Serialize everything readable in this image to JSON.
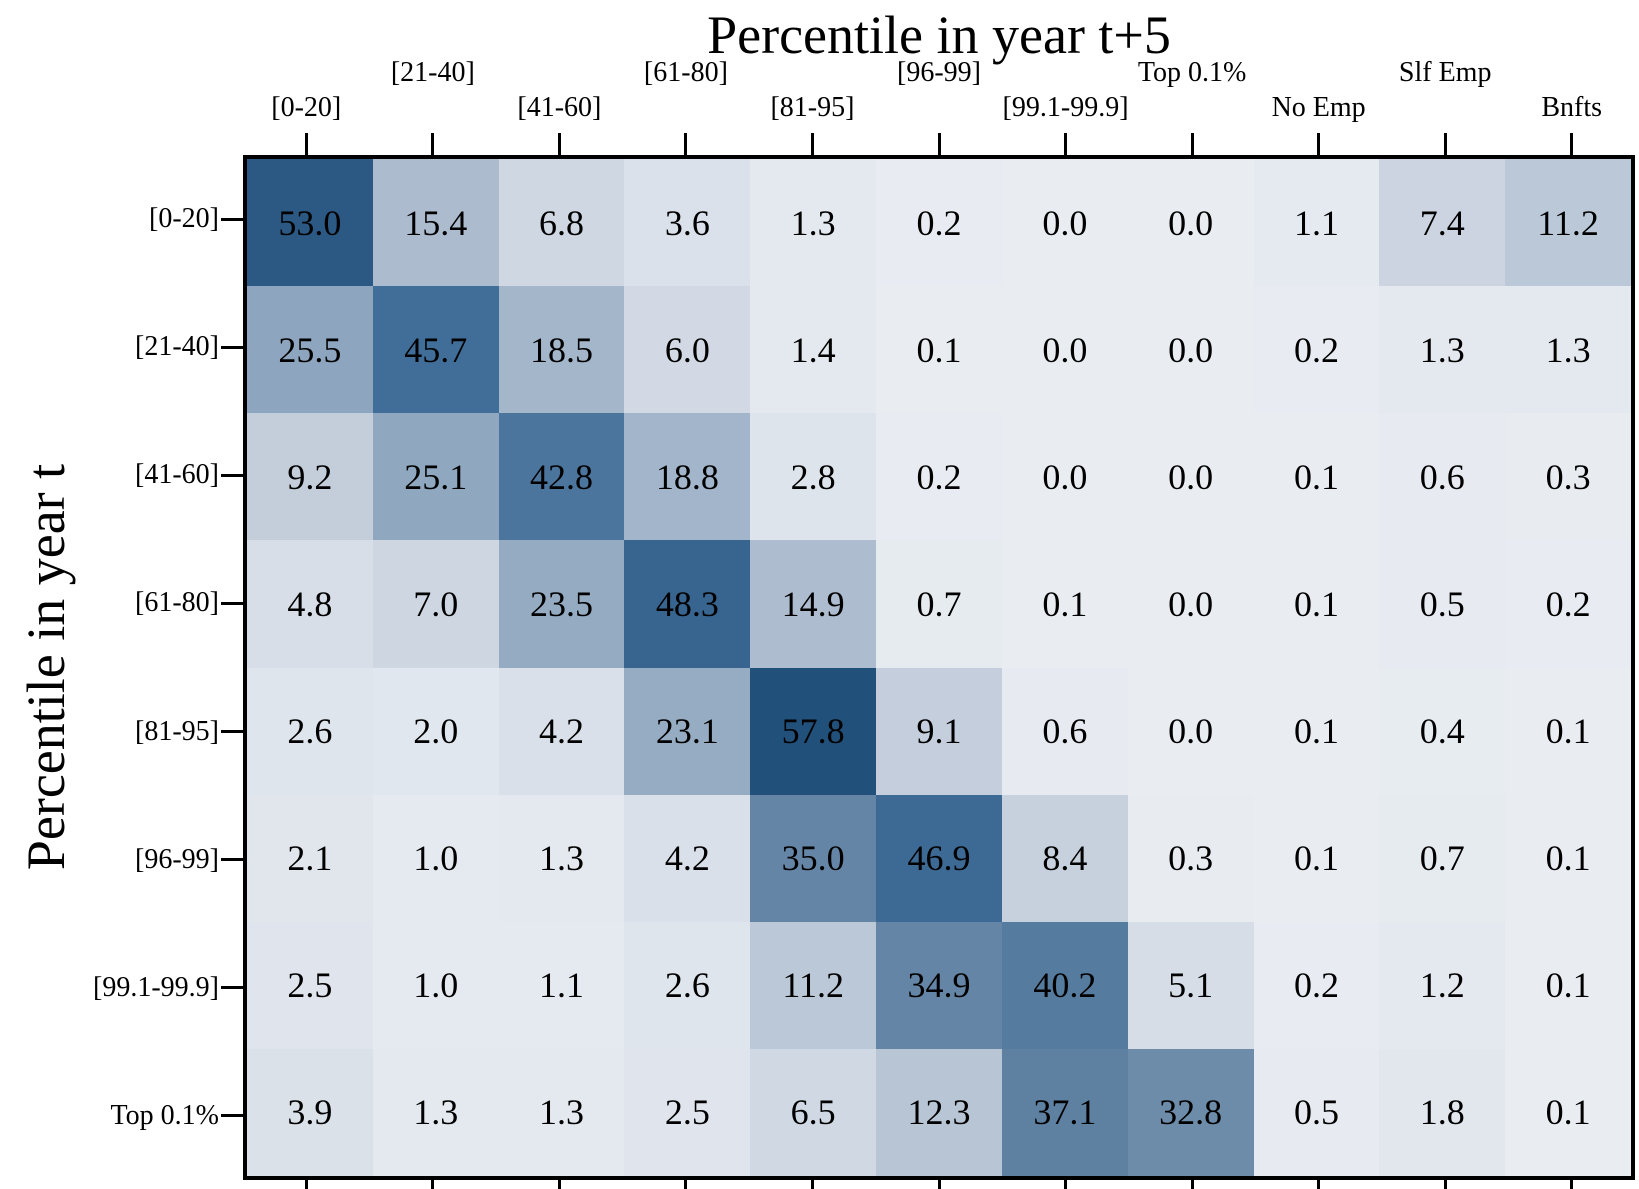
{
  "title": "Percentile in year t+5",
  "ylabel": "Percentile in year t",
  "chart_data": {
    "type": "heatmap",
    "title": "Percentile in year t+5",
    "xlabel": "Percentile in year t+5",
    "ylabel": "Percentile in year t",
    "columns": [
      "[0-20]",
      "[21-40]",
      "[41-60]",
      "[61-80]",
      "[81-95]",
      "[96-99]",
      "[99.1-99.9]",
      "Top 0.1%",
      "No Emp",
      "Slf Emp",
      "Bnfts"
    ],
    "rows": [
      "[0-20]",
      "[21-40]",
      "[41-60]",
      "[61-80]",
      "[81-95]",
      "[96-99]",
      "[99.1-99.9]",
      "Top 0.1%"
    ],
    "values": [
      [
        53.0,
        15.4,
        6.8,
        3.6,
        1.3,
        0.2,
        0.0,
        0.0,
        1.1,
        7.4,
        11.2
      ],
      [
        25.5,
        45.7,
        18.5,
        6.0,
        1.4,
        0.1,
        0.0,
        0.0,
        0.2,
        1.3,
        1.3
      ],
      [
        9.2,
        25.1,
        42.8,
        18.8,
        2.8,
        0.2,
        0.0,
        0.0,
        0.1,
        0.6,
        0.3
      ],
      [
        4.8,
        7.0,
        23.5,
        48.3,
        14.9,
        0.7,
        0.1,
        0.0,
        0.1,
        0.5,
        0.2
      ],
      [
        2.6,
        2.0,
        4.2,
        23.1,
        57.8,
        9.1,
        0.6,
        0.0,
        0.1,
        0.4,
        0.1
      ],
      [
        2.1,
        1.0,
        1.3,
        4.2,
        35.0,
        46.9,
        8.4,
        0.3,
        0.1,
        0.7,
        0.1
      ],
      [
        2.5,
        1.0,
        1.1,
        2.6,
        11.2,
        34.9,
        40.2,
        5.1,
        0.2,
        1.2,
        0.1
      ],
      [
        3.9,
        1.3,
        1.3,
        2.5,
        6.5,
        12.3,
        37.1,
        32.8,
        0.5,
        1.8,
        0.1
      ]
    ],
    "value_decimals": 1,
    "grid": false,
    "legend": "none",
    "value_range": [
      0,
      57.8
    ],
    "colorscale": {
      "anchors": [
        0,
        5,
        10,
        15,
        20,
        25,
        30,
        35,
        40,
        45,
        50,
        60
      ],
      "colors": [
        "#e9edf2",
        "#d6dde7",
        "#c0cbd9",
        "#adbdcf",
        "#9fb3c8",
        "#8fa7bf",
        "#7894b0",
        "#6485a5",
        "#567b9e",
        "#44719c",
        "#315f89",
        "#1c4c76"
      ]
    },
    "label_stagger": {
      "upper": [
        1,
        3,
        5,
        7,
        9
      ],
      "lower": [
        0,
        2,
        4,
        6,
        8,
        10
      ]
    },
    "colors": {
      "cell_text": "#000000",
      "border": "#000000",
      "background": "#ffffff"
    }
  }
}
